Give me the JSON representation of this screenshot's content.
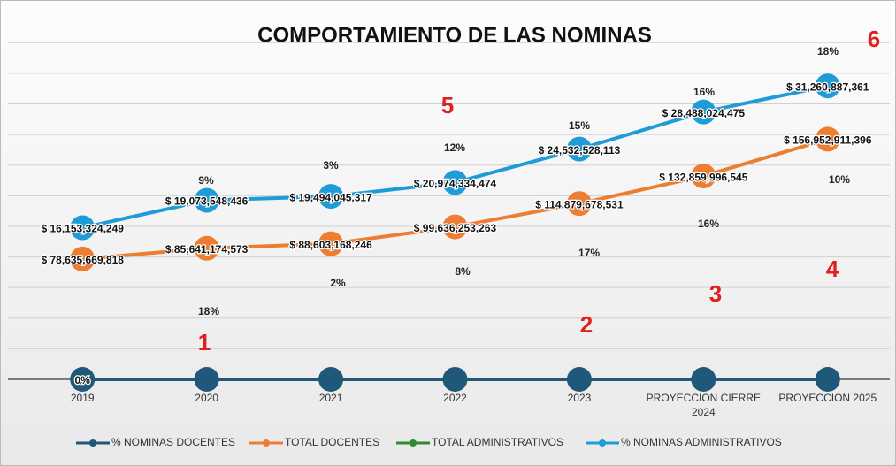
{
  "chart_data": {
    "type": "line",
    "title": "COMPORTAMIENTO DE LAS NOMINAS",
    "categories": [
      "2019",
      "2020",
      "2021",
      "2022",
      "2023",
      "PROYECCION CIERRE 2024",
      "PROYECCION 2025"
    ],
    "ylim": [
      0,
      230000000000
    ],
    "yticks": [
      0,
      20000000000,
      40000000000,
      60000000000,
      80000000000,
      100000000000,
      120000000000,
      140000000000,
      160000000000,
      180000000000,
      200000000000,
      220000000000
    ],
    "y2lim": [
      0,
      37500000000
    ],
    "grid": true,
    "legend": "bottom",
    "series": [
      {
        "name": "% NOMINAS DOCENTES",
        "color": "#1f5878",
        "values": [
          0,
          0,
          0,
          0,
          0,
          0,
          0
        ],
        "value_labels": [
          "0%",
          null,
          null,
          null,
          null,
          null,
          null
        ]
      },
      {
        "name": "TOTAL DOCENTES",
        "color": "#ed7d31",
        "values": [
          78635669818,
          85641174573,
          88603168246,
          99636253263,
          114879678531,
          132859996545,
          156952911396
        ],
        "value_labels": [
          "$ 78,635,669,818",
          "$ 85,641,174,573",
          "$ 88,603,168,246",
          "$ 99,636,253,263",
          "$ 114,879,678,531",
          "$ 132,859,996,545",
          "$ 156,952,911,396"
        ]
      },
      {
        "name": "TOTAL ADMINISTRATIVOS",
        "color": "#2e8b2e",
        "values": [
          null,
          null,
          null,
          null,
          null,
          null,
          null
        ]
      },
      {
        "name": "% NOMINAS ADMINISTRATIVOS",
        "color": "#1f9bd6",
        "axis": "y2",
        "values": [
          16153324249,
          19073548436,
          19494045317,
          20974334474,
          24532528113,
          28488024475,
          31260887361
        ],
        "value_labels": [
          "$ 16,153,324,249",
          "$ 19,073,548,436",
          "$ 19,494,045,317",
          "$ 20,974,334,474",
          "$ 24,532,528,113",
          "$ 28,488,024,475",
          "$ 31,260,887,361"
        ]
      }
    ],
    "annotations": [
      "18%",
      "16%",
      "15%",
      "12%",
      "3%",
      "9%",
      "10%",
      "16%",
      "17%",
      "8%",
      "2%",
      "18%"
    ],
    "markers": [
      "6",
      "5",
      "4",
      "3",
      "2",
      "1"
    ]
  }
}
